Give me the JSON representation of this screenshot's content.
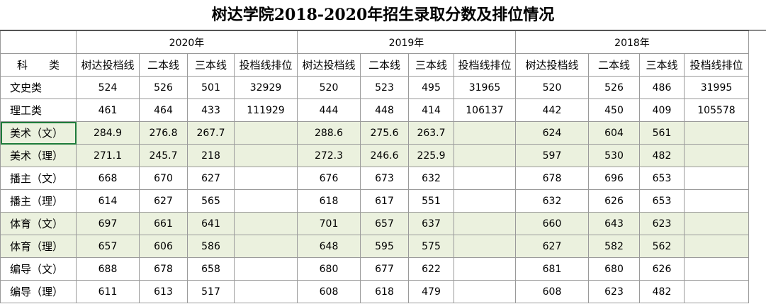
{
  "title": "树达学院2018-2020年招生录取分数及排位情况",
  "years": [
    "2020年",
    "2019年",
    "2018年"
  ],
  "category_header": "科　　类",
  "column_headers": [
    "树达投档线",
    "二本线",
    "三本线",
    "投档线排位"
  ],
  "rows": [
    {
      "cat": "文史类",
      "v": [
        "524",
        "526",
        "501",
        "32929",
        "520",
        "523",
        "495",
        "31965",
        "520",
        "526",
        "486",
        "31995"
      ]
    },
    {
      "cat": "理工类",
      "v": [
        "461",
        "464",
        "433",
        "111929",
        "444",
        "448",
        "414",
        "106137",
        "442",
        "450",
        "409",
        "105578"
      ]
    },
    {
      "cat": "美术（文）",
      "v": [
        "284.9",
        "276.8",
        "267.7",
        "",
        "288.6",
        "275.6",
        "263.7",
        "",
        "624",
        "604",
        "561",
        ""
      ]
    },
    {
      "cat": "美术（理）",
      "v": [
        "271.1",
        "245.7",
        "218",
        "",
        "272.3",
        "246.6",
        "225.9",
        "",
        "597",
        "530",
        "482",
        ""
      ]
    },
    {
      "cat": "播主（文）",
      "v": [
        "668",
        "670",
        "627",
        "",
        "676",
        "673",
        "632",
        "",
        "678",
        "696",
        "653",
        ""
      ]
    },
    {
      "cat": "播主（理）",
      "v": [
        "614",
        "627",
        "565",
        "",
        "618",
        "617",
        "551",
        "",
        "632",
        "626",
        "653",
        ""
      ]
    },
    {
      "cat": "体育（文）",
      "v": [
        "697",
        "661",
        "641",
        "",
        "701",
        "657",
        "637",
        "",
        "660",
        "643",
        "623",
        ""
      ]
    },
    {
      "cat": "体育（理）",
      "v": [
        "657",
        "606",
        "586",
        "",
        "648",
        "595",
        "575",
        "",
        "627",
        "582",
        "562",
        ""
      ]
    },
    {
      "cat": "编导（文）",
      "v": [
        "688",
        "678",
        "658",
        "",
        "680",
        "677",
        "622",
        "",
        "681",
        "680",
        "626",
        ""
      ]
    },
    {
      "cat": "编导（理）",
      "v": [
        "611",
        "613",
        "517",
        "",
        "608",
        "618",
        "479",
        "",
        "608",
        "623",
        "482",
        ""
      ]
    }
  ]
}
